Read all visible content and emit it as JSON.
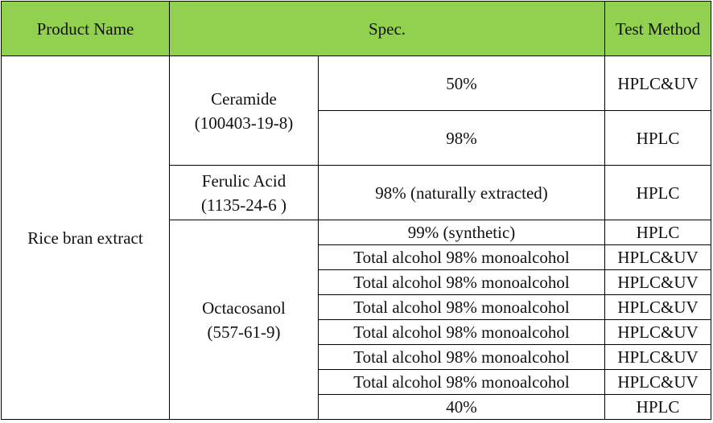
{
  "header": {
    "product_name": "Product Name",
    "spec": "Spec.",
    "test_method": "Test Method",
    "fill_color": "#92d050"
  },
  "product": "Rice bran extract",
  "groups": [
    {
      "name": "Ceramide",
      "cas": "(100403-19-8)",
      "rows": [
        {
          "spec": "50%",
          "method": "HPLC&UV"
        },
        {
          "spec": "98%",
          "method": "HPLC"
        }
      ]
    },
    {
      "name": "Ferulic Acid",
      "cas": "(1135-24-6 )",
      "rows": [
        {
          "spec": "98% (naturally extracted)",
          "method": "HPLC"
        }
      ]
    },
    {
      "name": "Octacosanol",
      "cas": "(557-61-9)",
      "rows": [
        {
          "spec": "99% (synthetic)",
          "method": "HPLC"
        },
        {
          "spec": "Total alcohol 98% monoalcohol",
          "method": "HPLC&UV"
        },
        {
          "spec": "Total alcohol 98% monoalcohol",
          "method": "HPLC&UV"
        },
        {
          "spec": "Total alcohol 98% monoalcohol",
          "method": "HPLC&UV"
        },
        {
          "spec": "Total alcohol 98% monoalcohol",
          "method": "HPLC&UV"
        },
        {
          "spec": "Total alcohol 98% monoalcohol",
          "method": "HPLC&UV"
        },
        {
          "spec": "Total alcohol 98% monoalcohol",
          "method": "HPLC&UV"
        },
        {
          "spec": "40%",
          "method": "HPLC"
        }
      ]
    }
  ]
}
